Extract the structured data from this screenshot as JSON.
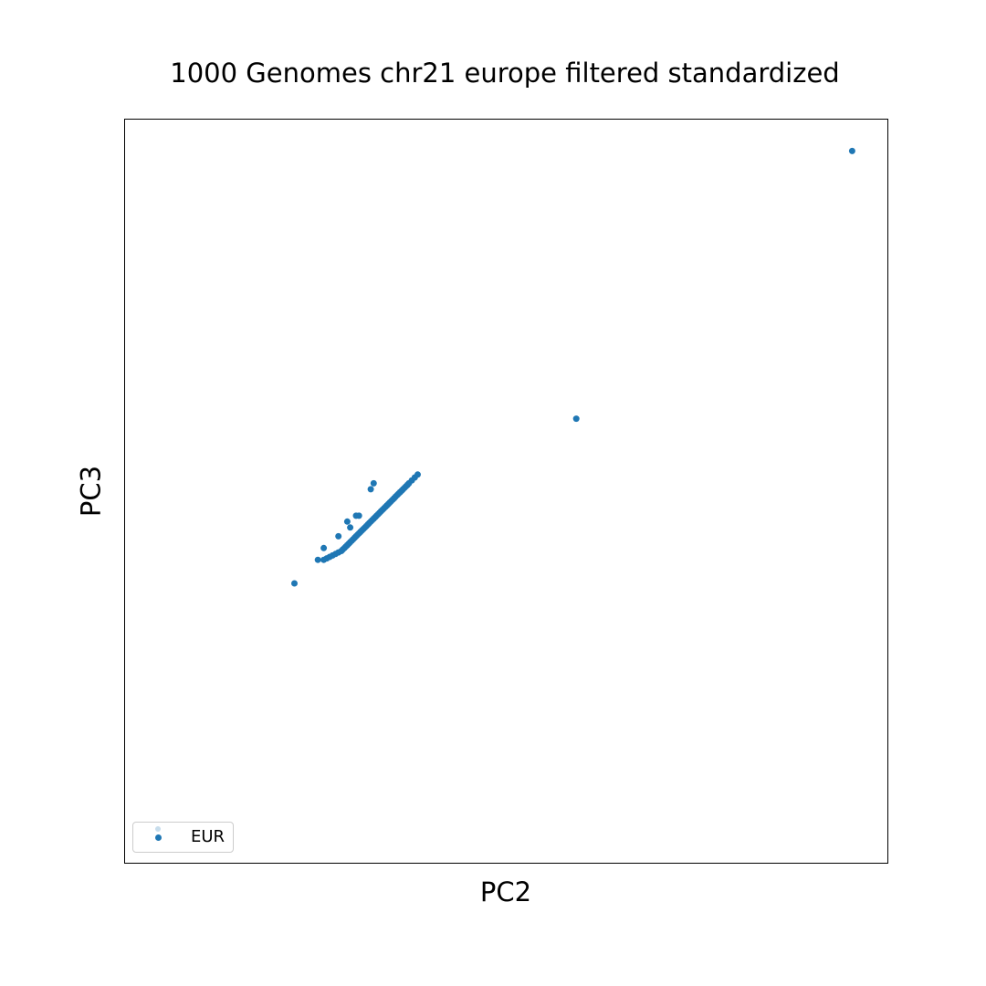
{
  "chart_data": {
    "type": "scatter",
    "title": "1000 Genomes chr21 europe filtered standardized",
    "xlabel": "PC2",
    "ylabel": "PC3",
    "xlim": [
      -0.68,
      1.92
    ],
    "ylim": [
      -1.38,
      1.15
    ],
    "ticks_visible": false,
    "grid": false,
    "legend_placement": "lower-left",
    "marker_color": "#1f77b4",
    "series": [
      {
        "name": "EUR",
        "x": [
          1.8,
          0.86,
          -0.1,
          -0.02,
          0.05,
          0.09,
          0.12,
          0.16,
          0.17,
          0.11,
          0.08,
          0.0,
          0.0,
          0.01,
          0.02,
          0.03,
          0.04,
          0.05,
          0.06,
          0.065,
          0.07,
          0.075,
          0.08,
          0.085,
          0.09,
          0.095,
          0.1,
          0.105,
          0.11,
          0.115,
          0.12,
          0.125,
          0.13,
          0.135,
          0.14,
          0.145,
          0.15,
          0.155,
          0.16,
          0.165,
          0.17,
          0.175,
          0.18,
          0.185,
          0.19,
          0.195,
          0.2,
          0.205,
          0.21,
          0.215,
          0.22,
          0.225,
          0.23,
          0.235,
          0.24,
          0.245,
          0.25,
          0.255,
          0.26,
          0.265,
          0.27,
          0.275,
          0.28,
          0.285,
          0.29,
          0.3,
          0.31,
          0.32
        ],
        "y": [
          1.04,
          0.13,
          -0.43,
          -0.35,
          -0.27,
          -0.24,
          -0.2,
          -0.11,
          -0.09,
          -0.2,
          -0.22,
          -0.31,
          -0.35,
          -0.345,
          -0.34,
          -0.335,
          -0.33,
          -0.325,
          -0.32,
          -0.315,
          -0.31,
          -0.305,
          -0.3,
          -0.295,
          -0.29,
          -0.285,
          -0.28,
          -0.275,
          -0.27,
          -0.265,
          -0.26,
          -0.255,
          -0.25,
          -0.245,
          -0.24,
          -0.235,
          -0.23,
          -0.225,
          -0.22,
          -0.215,
          -0.21,
          -0.205,
          -0.2,
          -0.195,
          -0.19,
          -0.185,
          -0.18,
          -0.175,
          -0.17,
          -0.165,
          -0.16,
          -0.155,
          -0.15,
          -0.145,
          -0.14,
          -0.135,
          -0.13,
          -0.125,
          -0.12,
          -0.115,
          -0.11,
          -0.105,
          -0.1,
          -0.095,
          -0.09,
          -0.08,
          -0.07,
          -0.06
        ]
      }
    ]
  }
}
